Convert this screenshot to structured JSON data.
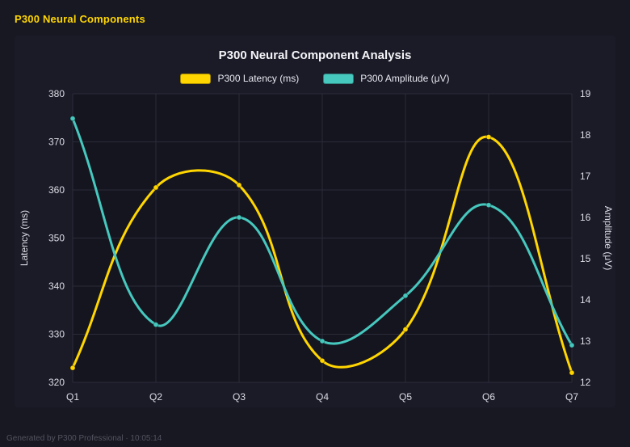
{
  "header": {
    "title": "P300 Neural Components"
  },
  "footer": {
    "text": "Generated by P300 Professional · 10:05:14"
  },
  "chart_data": {
    "type": "line",
    "title": "P300 Neural Component Analysis",
    "categories": [
      "Q1",
      "Q2",
      "Q3",
      "Q4",
      "Q5",
      "Q6",
      "Q7"
    ],
    "series": [
      {
        "name": "P300 Latency (ms)",
        "axis": "left",
        "color": "#ffd600",
        "values": [
          323,
          360.5,
          361,
          324.5,
          331,
          371,
          322
        ]
      },
      {
        "name": "P300 Amplitude (μV)",
        "axis": "right",
        "color": "#46c8be",
        "values": [
          18.4,
          13.4,
          16.0,
          13.0,
          14.1,
          16.3,
          12.9
        ]
      }
    ],
    "left_axis": {
      "label": "Latency (ms)",
      "min": 320,
      "max": 380,
      "step": 10
    },
    "right_axis": {
      "label": "Amplitude (μV)",
      "min": 12,
      "max": 19,
      "step": 1
    },
    "grid": true,
    "legend_position": "top",
    "line_tension": 0.4,
    "colors": {
      "grid": "#2b2b3a",
      "text": "#dddde6",
      "plot_bg": "#15151f",
      "title": "#f4f4f8",
      "accent_yellow": "#ffd600",
      "accent_teal": "#46c8be"
    }
  }
}
